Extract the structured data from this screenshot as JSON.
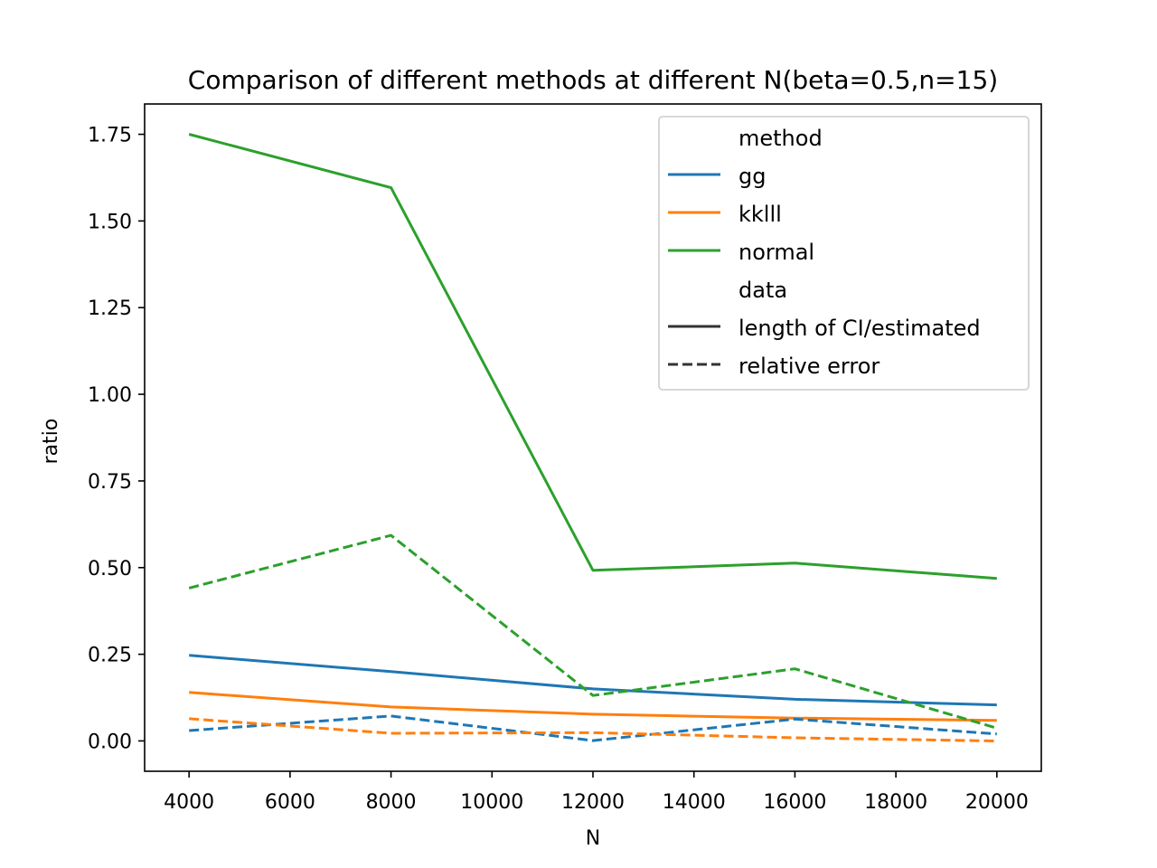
{
  "chart_data": {
    "type": "line",
    "title": "Comparison of different methods at different N(beta=0.5,n=15)",
    "xlabel": "N",
    "ylabel": "ratio",
    "xlim": [
      3120,
      20880
    ],
    "ylim": [
      -0.0875,
      1.8375
    ],
    "xticks": [
      4000,
      6000,
      8000,
      10000,
      12000,
      14000,
      16000,
      18000,
      20000
    ],
    "yticks": [
      0.0,
      0.25,
      0.5,
      0.75,
      1.0,
      1.25,
      1.5,
      1.75
    ],
    "ytick_labels": [
      "0.00",
      "0.25",
      "0.50",
      "0.75",
      "1.00",
      "1.25",
      "1.50",
      "1.75"
    ],
    "x": [
      4000,
      8000,
      12000,
      16000,
      20000
    ],
    "series": [
      {
        "method": "gg",
        "data": "length of CI/estimated",
        "color": "#1f77b4",
        "dash": "solid",
        "values": [
          0.247,
          0.2,
          0.15,
          0.12,
          0.104
        ]
      },
      {
        "method": "kklll",
        "data": "length of CI/estimated",
        "color": "#ff7f0e",
        "dash": "solid",
        "values": [
          0.14,
          0.098,
          0.077,
          0.066,
          0.059
        ]
      },
      {
        "method": "normal",
        "data": "length of CI/estimated",
        "color": "#2ca02c",
        "dash": "solid",
        "values": [
          1.75,
          1.596,
          0.492,
          0.513,
          0.469
        ]
      },
      {
        "method": "gg",
        "data": "relative error",
        "color": "#1f77b4",
        "dash": "dashed",
        "values": [
          0.03,
          0.072,
          0.001,
          0.063,
          0.02
        ]
      },
      {
        "method": "kklll",
        "data": "relative error",
        "color": "#ff7f0e",
        "dash": "dashed",
        "values": [
          0.064,
          0.022,
          0.024,
          0.009,
          0.0
        ]
      },
      {
        "method": "normal",
        "data": "relative error",
        "color": "#2ca02c",
        "dash": "dashed",
        "values": [
          0.441,
          0.593,
          0.131,
          0.208,
          0.037
        ]
      }
    ],
    "legend": {
      "placement": "upper right",
      "entries": [
        {
          "label": "method",
          "kind": "header"
        },
        {
          "label": "gg",
          "color": "#1f77b4",
          "dash": "solid"
        },
        {
          "label": "kklll",
          "color": "#ff7f0e",
          "dash": "solid"
        },
        {
          "label": "normal",
          "color": "#2ca02c",
          "dash": "solid"
        },
        {
          "label": "data",
          "kind": "header"
        },
        {
          "label": "length of CI/estimated",
          "color": "#333333",
          "dash": "solid"
        },
        {
          "label": "relative error",
          "color": "#333333",
          "dash": "dashed"
        }
      ]
    },
    "grid": false
  }
}
